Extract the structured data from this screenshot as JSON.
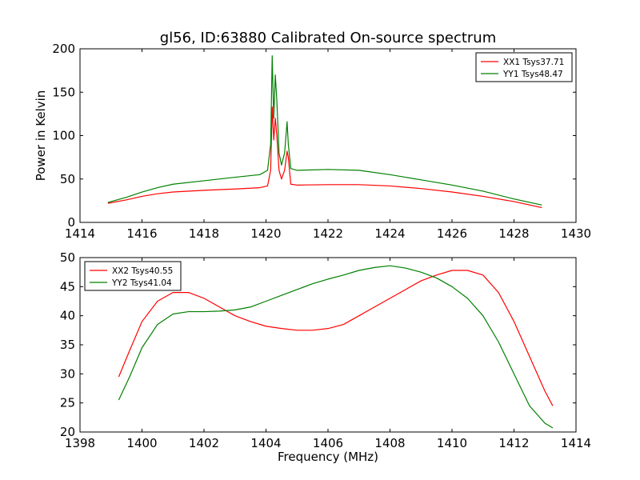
{
  "figure": {
    "title": "gl56, ID:63880 Calibrated On-source spectrum"
  },
  "chart_data": [
    {
      "type": "line",
      "ylabel": "Power in Kelvin",
      "xlabel": "",
      "xlim": [
        1414,
        1430
      ],
      "ylim": [
        0,
        200
      ],
      "xticks": [
        1414,
        1416,
        1418,
        1420,
        1422,
        1424,
        1426,
        1428,
        1430
      ],
      "yticks": [
        0,
        50,
        100,
        150,
        200
      ],
      "legend_position": "top-right",
      "series": [
        {
          "name": "XX1 Tsys37.71",
          "color": "#ff0000",
          "x": [
            1414.9,
            1415.5,
            1416,
            1416.5,
            1417,
            1418,
            1419,
            1419.8,
            1420.05,
            1420.15,
            1420.2,
            1420.25,
            1420.3,
            1420.35,
            1420.42,
            1420.5,
            1420.6,
            1420.68,
            1420.72,
            1420.8,
            1421,
            1422,
            1423,
            1424,
            1425,
            1426,
            1427,
            1428,
            1428.9
          ],
          "y": [
            22,
            26,
            30,
            33,
            35,
            37,
            38.5,
            40,
            42,
            60,
            133,
            95,
            120,
            100,
            60,
            50,
            60,
            82,
            75,
            44,
            43,
            43.5,
            43.5,
            42,
            39,
            35,
            30,
            24,
            17
          ]
        },
        {
          "name": "YY1 Tsys48.47",
          "color": "#008000",
          "x": [
            1414.9,
            1415.5,
            1416,
            1416.5,
            1417,
            1418,
            1419,
            1419.8,
            1420.05,
            1420.15,
            1420.2,
            1420.25,
            1420.3,
            1420.35,
            1420.42,
            1420.5,
            1420.6,
            1420.68,
            1420.72,
            1420.8,
            1421,
            1422,
            1423,
            1424,
            1425,
            1426,
            1427,
            1428,
            1428.9
          ],
          "y": [
            23,
            29,
            35,
            40,
            44,
            48,
            52,
            55,
            60,
            90,
            192,
            120,
            170,
            140,
            80,
            66,
            80,
            116,
            90,
            62,
            60,
            61,
            60,
            55,
            49,
            43,
            36,
            27,
            20
          ]
        }
      ]
    },
    {
      "type": "line",
      "xlabel": "Frequency (MHz)",
      "ylabel": "",
      "xlim": [
        1398,
        1414
      ],
      "ylim": [
        20,
        50
      ],
      "xticks": [
        1398,
        1400,
        1402,
        1404,
        1406,
        1408,
        1410,
        1412,
        1414
      ],
      "yticks": [
        20,
        25,
        30,
        35,
        40,
        45,
        50
      ],
      "legend_position": "top-left",
      "series": [
        {
          "name": "XX2 Tsys40.55",
          "color": "#ff0000",
          "x": [
            1399.25,
            1399.6,
            1400,
            1400.5,
            1401,
            1401.5,
            1402,
            1402.5,
            1403,
            1403.5,
            1404,
            1404.5,
            1405,
            1405.5,
            1406,
            1406.5,
            1407,
            1407.5,
            1408,
            1408.5,
            1409,
            1409.5,
            1410,
            1410.5,
            1411,
            1411.5,
            1412,
            1412.5,
            1413,
            1413.25
          ],
          "y": [
            29.5,
            34,
            39,
            42.5,
            44,
            44,
            43,
            41.5,
            40,
            39,
            38.2,
            37.8,
            37.5,
            37.5,
            37.8,
            38.5,
            40,
            41.5,
            43,
            44.5,
            46,
            47,
            47.8,
            47.8,
            47,
            44,
            39,
            33,
            27,
            24.5
          ]
        },
        {
          "name": "YY2 Tsys41.04",
          "color": "#008000",
          "x": [
            1399.25,
            1399.6,
            1400,
            1400.5,
            1401,
            1401.5,
            1402,
            1402.5,
            1403,
            1403.5,
            1404,
            1404.5,
            1405,
            1405.5,
            1406,
            1406.5,
            1407,
            1407.5,
            1408,
            1408.5,
            1409,
            1409.5,
            1410,
            1410.5,
            1411,
            1411.5,
            1412,
            1412.5,
            1413,
            1413.25
          ],
          "y": [
            25.5,
            29.5,
            34.5,
            38.5,
            40.3,
            40.7,
            40.7,
            40.8,
            41,
            41.5,
            42.5,
            43.5,
            44.5,
            45.5,
            46.3,
            47,
            47.8,
            48.3,
            48.6,
            48.2,
            47.5,
            46.5,
            45,
            43,
            40,
            35.5,
            30,
            24.5,
            21.5,
            20.7
          ]
        }
      ]
    }
  ]
}
